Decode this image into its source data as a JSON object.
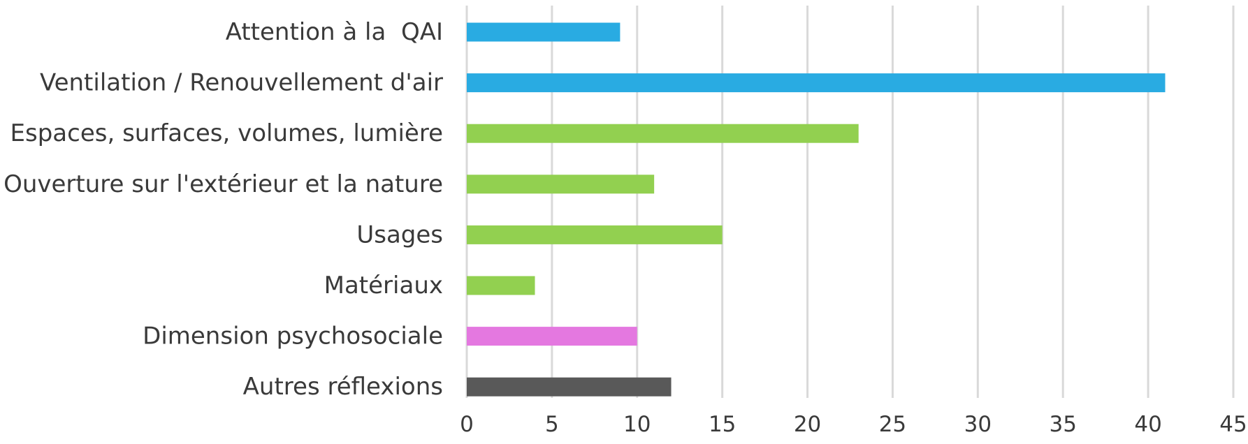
{
  "chart_data": {
    "type": "bar",
    "orientation": "horizontal",
    "categories": [
      "Attention à la  QAI",
      "Ventilation / Renouvellement d'air",
      "Espaces, surfaces, volumes, lumière",
      "Ouverture sur l'extérieur et la nature",
      "Usages",
      "Matériaux",
      "Dimension psychosociale",
      "Autres réflexions"
    ],
    "values": [
      9,
      41,
      23,
      11,
      15,
      4,
      10,
      12
    ],
    "colors": [
      "#29abe2",
      "#29abe2",
      "#92d050",
      "#92d050",
      "#92d050",
      "#92d050",
      "#e478e0",
      "#595959"
    ],
    "xlim": [
      0,
      45
    ],
    "xticks": [
      "0",
      "5",
      "10",
      "15",
      "20",
      "25",
      "30",
      "35",
      "40",
      "45"
    ],
    "title": "",
    "xlabel": "",
    "ylabel": "",
    "grid": "vertical",
    "legend": "none"
  }
}
